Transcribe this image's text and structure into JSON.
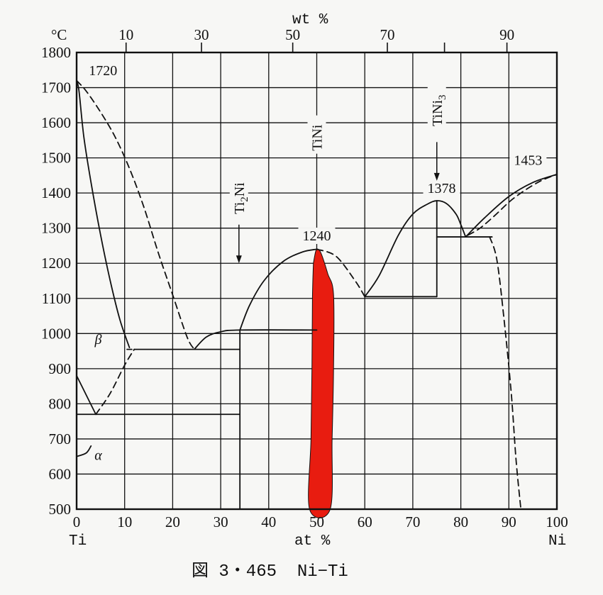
{
  "chart_data": {
    "type": "line",
    "title": "",
    "caption": "図 3・465  Ni−Ti",
    "x_unit_bottom": "at %",
    "x_unit_top": "wt %",
    "y_unit": "°C",
    "bottom_left_element": "Ti",
    "bottom_right_element": "Ni",
    "xlim": [
      0,
      100
    ],
    "ylim": [
      500,
      1800
    ],
    "grid": true,
    "x_ticks": [
      0,
      10,
      20,
      30,
      40,
      50,
      60,
      70,
      80,
      90,
      100
    ],
    "x_tick_labels": [
      "0",
      "10",
      "20",
      "30",
      "40",
      "50",
      "60",
      "70",
      "80",
      "90",
      "100"
    ],
    "y_ticks": [
      500,
      600,
      700,
      800,
      900,
      1000,
      1100,
      1200,
      1300,
      1400,
      1500,
      1600,
      1700,
      1800
    ],
    "y_tick_labels": [
      "500",
      "600",
      "700",
      "800",
      "900",
      "1000",
      "1100",
      "1200",
      "1300",
      "1400",
      "1500",
      "1600",
      "1700",
      "1800"
    ],
    "top_ticks": [
      {
        "at": 10.3,
        "label": "10"
      },
      {
        "at": 26.0,
        "label": "30"
      },
      {
        "at": 45.0,
        "label": "50"
      },
      {
        "at": 64.7,
        "label": "70"
      },
      {
        "at": 76.6,
        "label": ""
      },
      {
        "at": 89.6,
        "label": "90"
      }
    ],
    "phases": [
      {
        "label": "β",
        "x": 4.5,
        "y": 970
      },
      {
        "label": "α",
        "x": 4.5,
        "y": 640
      }
    ],
    "temperature_labels": [
      {
        "text": "1720",
        "x": 5.5,
        "y": 1735
      },
      {
        "text": "1240",
        "x": 50.0,
        "y": 1265
      },
      {
        "text": "1378",
        "x": 76.0,
        "y": 1400
      },
      {
        "text": "1453",
        "x": 94.0,
        "y": 1480
      }
    ],
    "compounds": [
      {
        "label": "Ti",
        "sub": "2",
        "tail": "Ni",
        "x": 33.8,
        "arrow_from": 1310,
        "arrow_to": 1200
      },
      {
        "label": "TiNi",
        "sub": "",
        "tail": "",
        "x": 50.0,
        "arrow_from": null,
        "arrow_to": null
      },
      {
        "label": "TiNi",
        "sub": "3",
        "tail": "",
        "x": 75.0,
        "arrow_from": 1545,
        "arrow_to": 1435
      }
    ],
    "series": [
      {
        "style": "solid",
        "points": [
          [
            0,
            1720
          ],
          [
            0.5,
            1690
          ],
          [
            1.5,
            1560
          ],
          [
            3,
            1430
          ],
          [
            5,
            1280
          ],
          [
            7,
            1150
          ],
          [
            9,
            1040
          ],
          [
            11,
            960
          ]
        ]
      },
      {
        "style": "dashed",
        "points": [
          [
            0,
            1720
          ],
          [
            2,
            1690
          ],
          [
            5,
            1630
          ],
          [
            8,
            1560
          ],
          [
            11,
            1470
          ],
          [
            14,
            1360
          ],
          [
            17,
            1230
          ],
          [
            20,
            1110
          ],
          [
            23,
            990
          ],
          [
            24.5,
            955
          ]
        ]
      },
      {
        "style": "solid",
        "points": [
          [
            24.5,
            955
          ],
          [
            27,
            990
          ],
          [
            30,
            1005
          ],
          [
            34,
            1010
          ],
          [
            50,
            1010
          ]
        ]
      },
      {
        "style": "solid",
        "points": [
          [
            34,
            1010
          ],
          [
            36,
            1080
          ],
          [
            39,
            1150
          ],
          [
            43,
            1205
          ],
          [
            47,
            1232
          ],
          [
            50,
            1240
          ]
        ]
      },
      {
        "style": "dashed",
        "points": [
          [
            50,
            1240
          ],
          [
            54,
            1220
          ],
          [
            58,
            1150
          ],
          [
            60,
            1105
          ]
        ]
      },
      {
        "style": "solid",
        "points": [
          [
            60,
            1105
          ],
          [
            63,
            1165
          ],
          [
            67,
            1280
          ],
          [
            70,
            1340
          ],
          [
            73,
            1368
          ],
          [
            75,
            1378
          ],
          [
            77,
            1370
          ],
          [
            79,
            1340
          ],
          [
            80,
            1310
          ],
          [
            81,
            1275
          ]
        ]
      },
      {
        "style": "solid",
        "points": [
          [
            60,
            1105
          ],
          [
            75,
            1105
          ]
        ]
      },
      {
        "style": "solid",
        "points": [
          [
            75,
            1105
          ],
          [
            75,
            1378
          ]
        ]
      },
      {
        "style": "solid",
        "points": [
          [
            75,
            1275
          ],
          [
            86.5,
            1275
          ]
        ]
      },
      {
        "style": "solid",
        "points": [
          [
            81,
            1275
          ],
          [
            85,
            1330
          ],
          [
            90,
            1390
          ],
          [
            95,
            1430
          ],
          [
            100,
            1453
          ]
        ]
      },
      {
        "style": "dashed",
        "points": [
          [
            81.5,
            1280
          ],
          [
            84,
            1300
          ],
          [
            87,
            1335
          ],
          [
            91,
            1385
          ],
          [
            96,
            1430
          ],
          [
            100,
            1453
          ]
        ]
      },
      {
        "style": "dashed",
        "points": [
          [
            86,
            1275
          ],
          [
            87.5,
            1210
          ],
          [
            89,
            1040
          ],
          [
            90.5,
            830
          ],
          [
            91.5,
            640
          ],
          [
            92.5,
            500
          ]
        ]
      },
      {
        "style": "solid",
        "points": [
          [
            12,
            955
          ],
          [
            34,
            955
          ]
        ]
      },
      {
        "style": "solid",
        "points": [
          [
            34,
            500
          ],
          [
            34,
            1010
          ]
        ]
      },
      {
        "style": "solid",
        "points": [
          [
            0,
            770
          ],
          [
            34,
            770
          ]
        ]
      },
      {
        "style": "solid",
        "points": [
          [
            0,
            880
          ],
          [
            2,
            825
          ],
          [
            4,
            770
          ]
        ]
      },
      {
        "style": "dashed",
        "points": [
          [
            4,
            770
          ],
          [
            7,
            830
          ],
          [
            10,
            910
          ],
          [
            12,
            955
          ]
        ]
      },
      {
        "style": "solid",
        "points": [
          [
            10.5,
            955
          ],
          [
            11.5,
            955
          ]
        ]
      },
      {
        "style": "solid",
        "points": [
          [
            0,
            650
          ],
          [
            2,
            660
          ],
          [
            3,
            680
          ]
        ]
      }
    ],
    "regions": [
      {
        "name": "TiNi",
        "fill": "#e81c10",
        "points": [
          [
            49.3,
            1200
          ],
          [
            49.8,
            1235
          ],
          [
            50.3,
            1240
          ],
          [
            51,
            1225
          ],
          [
            52.3,
            1170
          ],
          [
            53.5,
            1110
          ],
          [
            53.5,
            900
          ],
          [
            53.2,
            700
          ],
          [
            52.8,
            500
          ],
          [
            48.5,
            500
          ],
          [
            48.8,
            700
          ],
          [
            49.0,
            900
          ],
          [
            49.1,
            1100
          ]
        ]
      }
    ],
    "colors": {
      "ink": "#111111",
      "paper": "#f7f7f5",
      "phase_fill": "#e81c10"
    }
  }
}
